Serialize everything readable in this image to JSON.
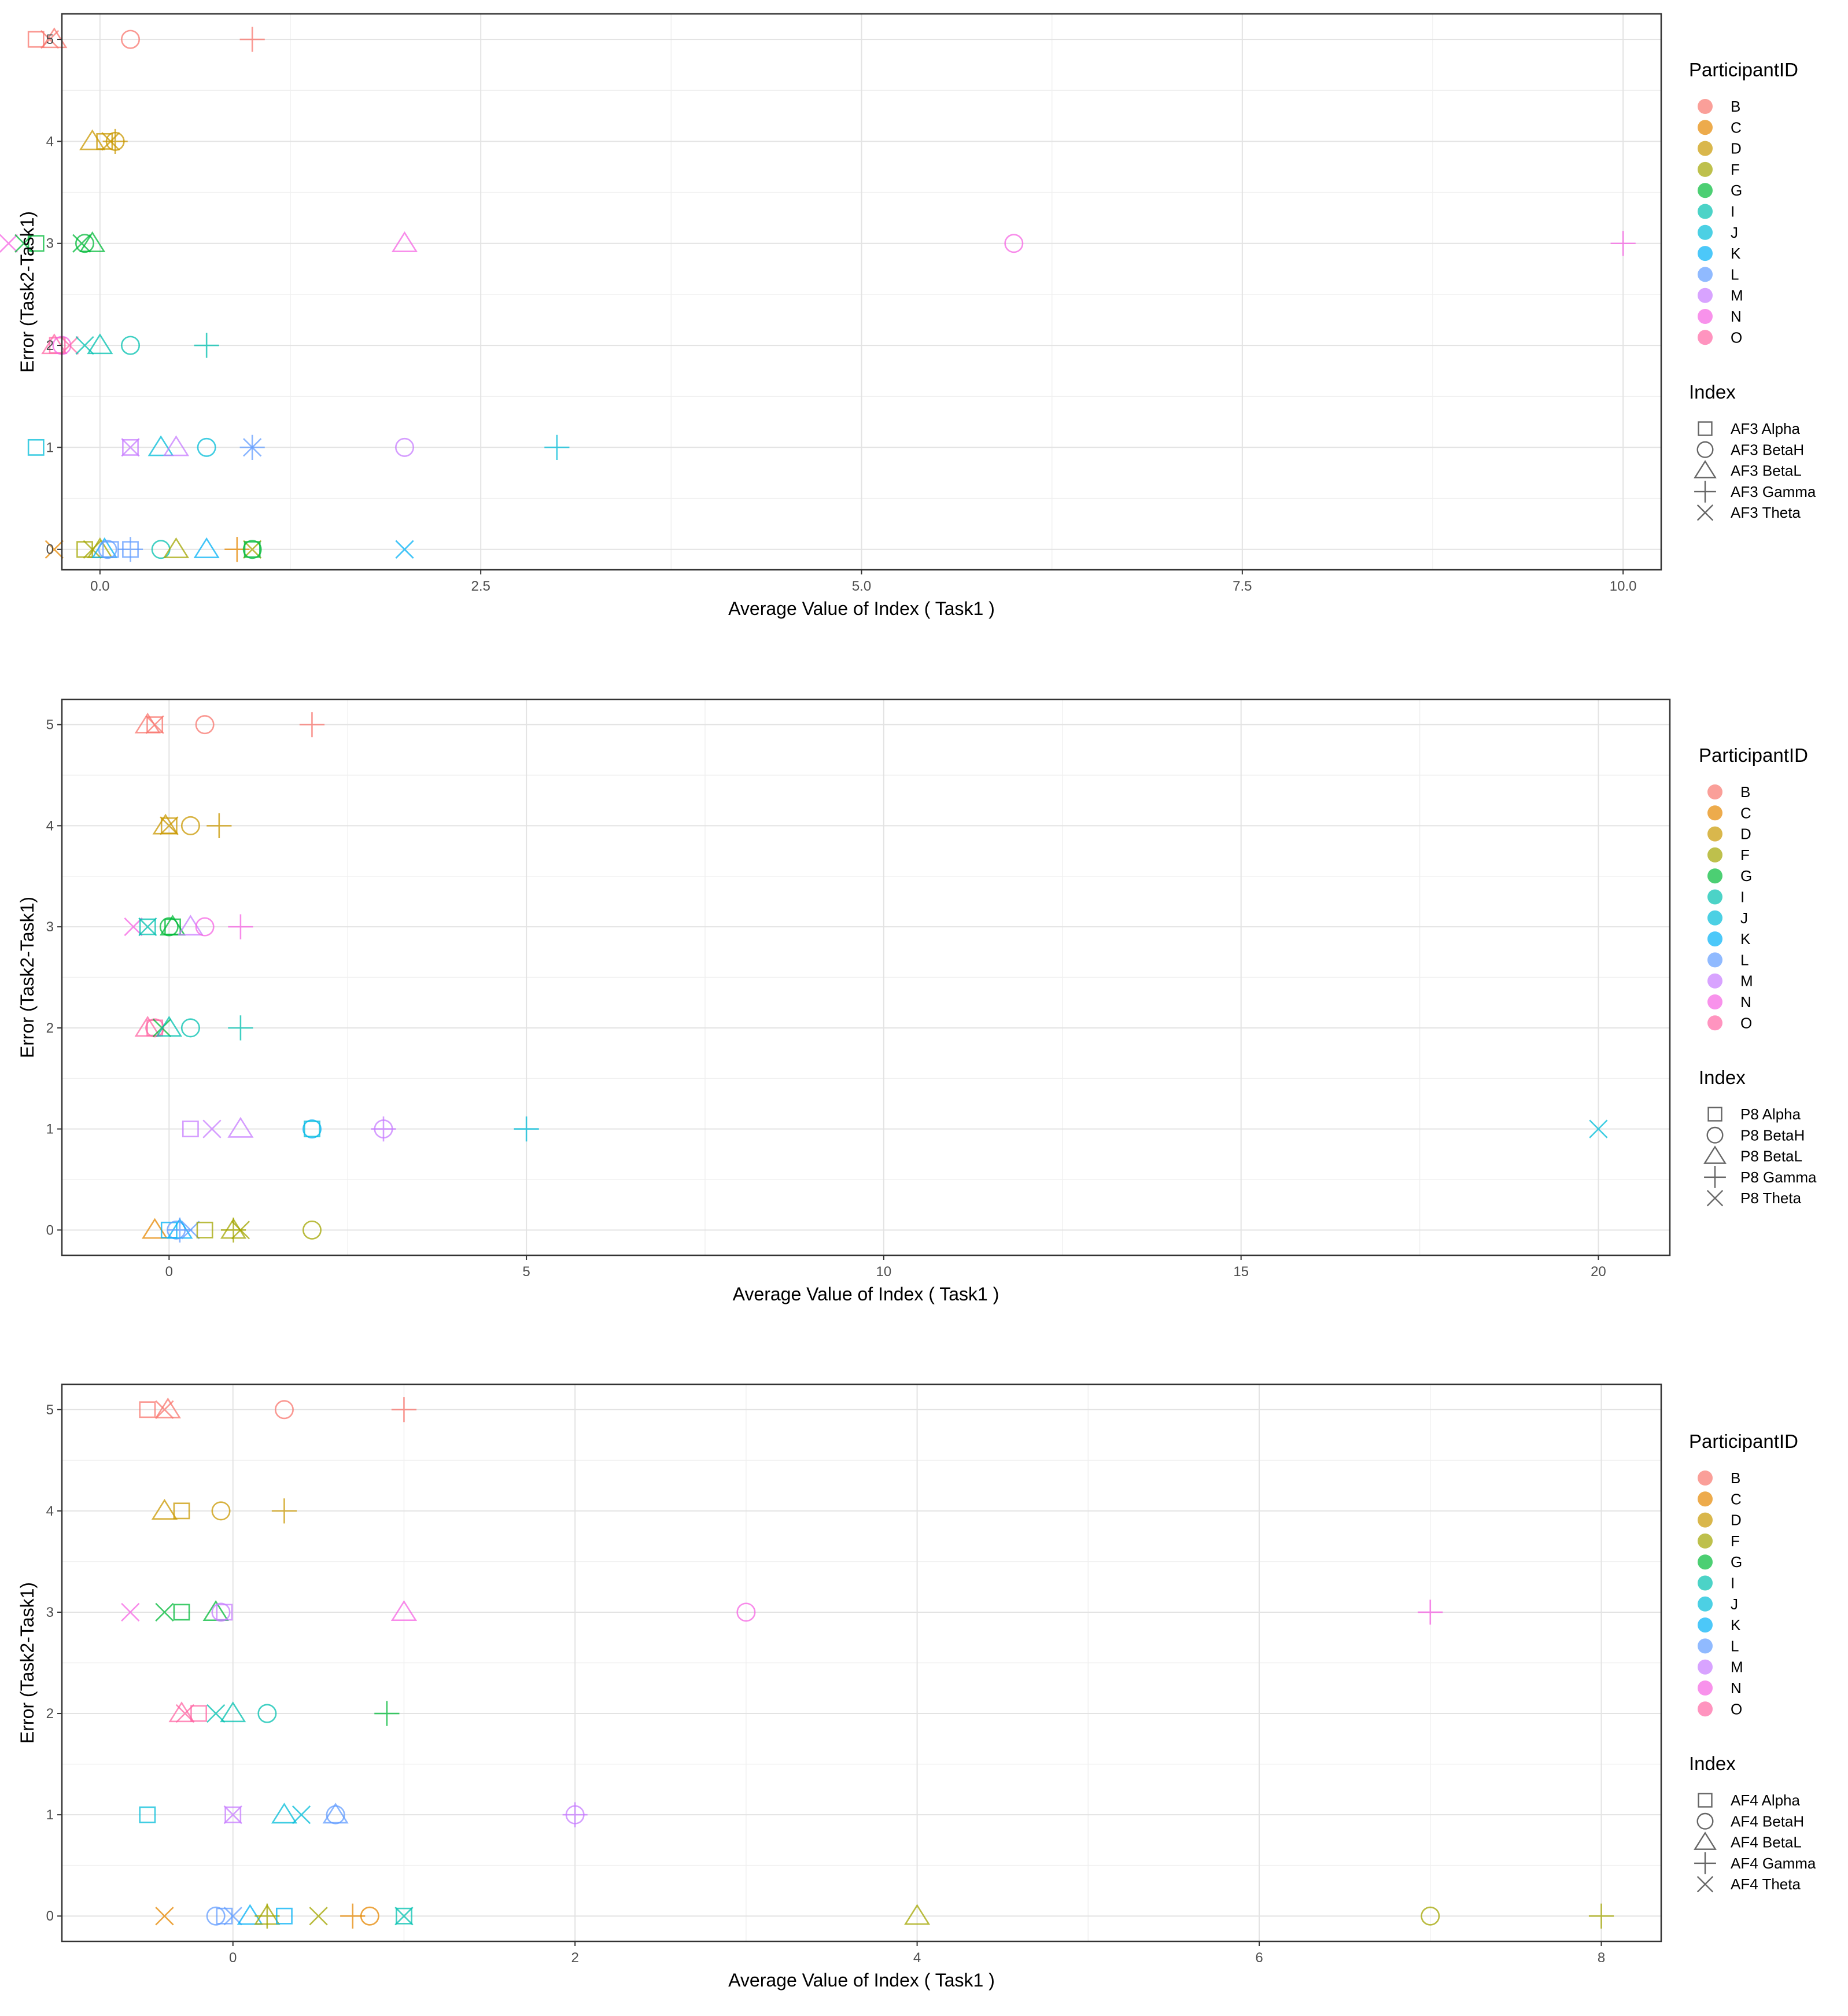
{
  "participant_colors": {
    "B": "#F8766D",
    "C": "#E58700",
    "D": "#C99800",
    "F": "#A3A500",
    "G": "#00BA38",
    "I": "#00C0AF",
    "J": "#00BCD8",
    "K": "#00B0F6",
    "L": "#619CFF",
    "M": "#C77CFF",
    "N": "#F564E3",
    "O": "#FF67A4"
  },
  "chart_data": [
    {
      "type": "scatter",
      "title": "",
      "xlabel": "Average Value of Index ( Task1 )",
      "ylabel": "Error (Task2-Task1)",
      "xlim": [
        -0.25,
        10.25
      ],
      "ylim": [
        -0.2,
        5.25
      ],
      "xticks": [
        0,
        2.5,
        5,
        7.5,
        10
      ],
      "xtick_labels": [
        "0.0",
        "2.5",
        "5.0",
        "7.5",
        "10.0"
      ],
      "yticks": [
        0,
        1,
        2,
        3,
        4,
        5
      ],
      "ytick_labels": [
        "0",
        "1",
        "2",
        "3",
        "4",
        "5"
      ],
      "legend_participant_title": "ParticipantID",
      "participants": [
        "B",
        "C",
        "D",
        "F",
        "G",
        "I",
        "J",
        "K",
        "L",
        "M",
        "N",
        "O"
      ],
      "legend_index_title": "Index",
      "index_labels": [
        "AF3 Alpha",
        "AF3 BetaH",
        "AF3 BetaL",
        "AF3 Gamma",
        "AF3 Theta"
      ],
      "index_shapes": [
        "square",
        "circle",
        "triangle",
        "plus",
        "cross"
      ],
      "points": [
        {
          "x": -0.42,
          "y": 5,
          "p": "B",
          "s": "square"
        },
        {
          "x": -0.33,
          "y": 5,
          "p": "B",
          "s": "cross"
        },
        {
          "x": -0.3,
          "y": 5,
          "p": "B",
          "s": "triangle"
        },
        {
          "x": 0.2,
          "y": 5,
          "p": "B",
          "s": "circle"
        },
        {
          "x": 1.0,
          "y": 5,
          "p": "B",
          "s": "plus"
        },
        {
          "x": -0.05,
          "y": 4,
          "p": "D",
          "s": "triangle"
        },
        {
          "x": 0.03,
          "y": 4,
          "p": "D",
          "s": "square"
        },
        {
          "x": 0.07,
          "y": 4,
          "p": "D",
          "s": "cross"
        },
        {
          "x": 0.1,
          "y": 4,
          "p": "D",
          "s": "circle"
        },
        {
          "x": 0.1,
          "y": 4,
          "p": "D",
          "s": "plus"
        },
        {
          "x": -0.6,
          "y": 3,
          "p": "N",
          "s": "cross"
        },
        {
          "x": -0.5,
          "y": 3,
          "p": "G",
          "s": "cross"
        },
        {
          "x": -0.42,
          "y": 3,
          "p": "G",
          "s": "square"
        },
        {
          "x": -0.12,
          "y": 3,
          "p": "G",
          "s": "cross"
        },
        {
          "x": -0.1,
          "y": 3,
          "p": "G",
          "s": "circle"
        },
        {
          "x": -0.05,
          "y": 3,
          "p": "G",
          "s": "triangle"
        },
        {
          "x": 2.0,
          "y": 3,
          "p": "N",
          "s": "triangle"
        },
        {
          "x": 6.0,
          "y": 3,
          "p": "N",
          "s": "circle"
        },
        {
          "x": 10.0,
          "y": 3,
          "p": "N",
          "s": "plus"
        },
        {
          "x": -0.3,
          "y": 2,
          "p": "O",
          "s": "triangle"
        },
        {
          "x": -0.28,
          "y": 2,
          "p": "O",
          "s": "square"
        },
        {
          "x": -0.25,
          "y": 2,
          "p": "N",
          "s": "circle"
        },
        {
          "x": -0.2,
          "y": 2,
          "p": "O",
          "s": "cross"
        },
        {
          "x": -0.1,
          "y": 2,
          "p": "I",
          "s": "cross"
        },
        {
          "x": 0.0,
          "y": 2,
          "p": "I",
          "s": "triangle"
        },
        {
          "x": 0.2,
          "y": 2,
          "p": "I",
          "s": "circle"
        },
        {
          "x": 0.7,
          "y": 2,
          "p": "I",
          "s": "plus"
        },
        {
          "x": -0.42,
          "y": 1,
          "p": "J",
          "s": "square"
        },
        {
          "x": 0.2,
          "y": 1,
          "p": "M",
          "s": "square"
        },
        {
          "x": 0.2,
          "y": 1,
          "p": "M",
          "s": "cross"
        },
        {
          "x": 0.4,
          "y": 1,
          "p": "J",
          "s": "triangle"
        },
        {
          "x": 0.5,
          "y": 1,
          "p": "M",
          "s": "triangle"
        },
        {
          "x": 0.7,
          "y": 1,
          "p": "J",
          "s": "circle"
        },
        {
          "x": 1.0,
          "y": 1,
          "p": "L",
          "s": "plus"
        },
        {
          "x": 1.0,
          "y": 1,
          "p": "L",
          "s": "cross"
        },
        {
          "x": 2.0,
          "y": 1,
          "p": "M",
          "s": "circle"
        },
        {
          "x": 3.0,
          "y": 1,
          "p": "J",
          "s": "plus"
        },
        {
          "x": -0.3,
          "y": 0,
          "p": "C",
          "s": "cross"
        },
        {
          "x": -0.1,
          "y": 0,
          "p": "F",
          "s": "square"
        },
        {
          "x": -0.05,
          "y": 0,
          "p": "F",
          "s": "cross"
        },
        {
          "x": 0.0,
          "y": 0,
          "p": "F",
          "s": "triangle"
        },
        {
          "x": 0.03,
          "y": 0,
          "p": "K",
          "s": "triangle"
        },
        {
          "x": 0.05,
          "y": 0,
          "p": "L",
          "s": "circle"
        },
        {
          "x": 0.07,
          "y": 0,
          "p": "L",
          "s": "square"
        },
        {
          "x": 0.2,
          "y": 0,
          "p": "L",
          "s": "plus"
        },
        {
          "x": 0.2,
          "y": 0,
          "p": "L",
          "s": "square"
        },
        {
          "x": 0.4,
          "y": 0,
          "p": "I",
          "s": "circle"
        },
        {
          "x": 0.5,
          "y": 0,
          "p": "F",
          "s": "triangle"
        },
        {
          "x": 0.7,
          "y": 0,
          "p": "K",
          "s": "triangle"
        },
        {
          "x": 0.9,
          "y": 0,
          "p": "C",
          "s": "plus"
        },
        {
          "x": 1.0,
          "y": 0,
          "p": "F",
          "s": "cross"
        },
        {
          "x": 1.0,
          "y": 0,
          "p": "G",
          "s": "circle"
        },
        {
          "x": 1.0,
          "y": 0,
          "p": "G",
          "s": "square"
        },
        {
          "x": 2.0,
          "y": 0,
          "p": "K",
          "s": "cross"
        }
      ]
    },
    {
      "type": "scatter",
      "title": "",
      "xlabel": "Average Value of Index ( Task1 )",
      "ylabel": "Error (Task2-Task1)",
      "xlim": [
        -1.5,
        21.0
      ],
      "ylim": [
        -0.25,
        5.25
      ],
      "xticks": [
        0,
        5,
        10,
        15,
        20
      ],
      "xtick_labels": [
        "0",
        "5",
        "10",
        "15",
        "20"
      ],
      "yticks": [
        0,
        1,
        2,
        3,
        4,
        5
      ],
      "ytick_labels": [
        "0",
        "1",
        "2",
        "3",
        "4",
        "5"
      ],
      "legend_participant_title": "ParticipantID",
      "participants": [
        "B",
        "C",
        "D",
        "F",
        "G",
        "I",
        "J",
        "K",
        "L",
        "M",
        "N",
        "O"
      ],
      "legend_index_title": "Index",
      "index_labels": [
        "P8 Alpha",
        "P8 BetaH",
        "P8 BetaL",
        "P8 Gamma",
        "P8 Theta"
      ],
      "index_shapes": [
        "square",
        "circle",
        "triangle",
        "plus",
        "cross"
      ],
      "points": [
        {
          "x": -0.3,
          "y": 5,
          "p": "B",
          "s": "triangle"
        },
        {
          "x": -0.2,
          "y": 5,
          "p": "B",
          "s": "square"
        },
        {
          "x": -0.2,
          "y": 5,
          "p": "B",
          "s": "cross"
        },
        {
          "x": 0.5,
          "y": 5,
          "p": "B",
          "s": "circle"
        },
        {
          "x": 2.0,
          "y": 5,
          "p": "B",
          "s": "plus"
        },
        {
          "x": -0.05,
          "y": 4,
          "p": "D",
          "s": "triangle"
        },
        {
          "x": 0.0,
          "y": 4,
          "p": "D",
          "s": "square"
        },
        {
          "x": 0.0,
          "y": 4,
          "p": "D",
          "s": "cross"
        },
        {
          "x": 0.3,
          "y": 4,
          "p": "D",
          "s": "circle"
        },
        {
          "x": 0.7,
          "y": 4,
          "p": "D",
          "s": "plus"
        },
        {
          "x": -0.5,
          "y": 3,
          "p": "N",
          "s": "cross"
        },
        {
          "x": -0.3,
          "y": 3,
          "p": "I",
          "s": "square"
        },
        {
          "x": -0.3,
          "y": 3,
          "p": "I",
          "s": "cross"
        },
        {
          "x": 0.0,
          "y": 3,
          "p": "G",
          "s": "circle"
        },
        {
          "x": 0.05,
          "y": 3,
          "p": "G",
          "s": "square"
        },
        {
          "x": 0.05,
          "y": 3,
          "p": "G",
          "s": "triangle"
        },
        {
          "x": 0.3,
          "y": 3,
          "p": "M",
          "s": "triangle"
        },
        {
          "x": 0.5,
          "y": 3,
          "p": "N",
          "s": "circle"
        },
        {
          "x": 1.0,
          "y": 3,
          "p": "N",
          "s": "plus"
        },
        {
          "x": -0.3,
          "y": 2,
          "p": "O",
          "s": "triangle"
        },
        {
          "x": -0.2,
          "y": 2,
          "p": "O",
          "s": "square"
        },
        {
          "x": -0.2,
          "y": 2,
          "p": "O",
          "s": "circle"
        },
        {
          "x": -0.1,
          "y": 2,
          "p": "G",
          "s": "cross"
        },
        {
          "x": 0.0,
          "y": 2,
          "p": "I",
          "s": "triangle"
        },
        {
          "x": 0.3,
          "y": 2,
          "p": "I",
          "s": "circle"
        },
        {
          "x": 1.0,
          "y": 2,
          "p": "I",
          "s": "plus"
        },
        {
          "x": 0.3,
          "y": 1,
          "p": "M",
          "s": "square"
        },
        {
          "x": 0.6,
          "y": 1,
          "p": "M",
          "s": "cross"
        },
        {
          "x": 1.0,
          "y": 1,
          "p": "M",
          "s": "triangle"
        },
        {
          "x": 2.0,
          "y": 1,
          "p": "K",
          "s": "circle"
        },
        {
          "x": 2.0,
          "y": 1,
          "p": "J",
          "s": "square"
        },
        {
          "x": 3.0,
          "y": 1,
          "p": "M",
          "s": "circle"
        },
        {
          "x": 3.0,
          "y": 1,
          "p": "M",
          "s": "plus"
        },
        {
          "x": 5.0,
          "y": 1,
          "p": "J",
          "s": "plus"
        },
        {
          "x": 20.0,
          "y": 1,
          "p": "J",
          "s": "cross"
        },
        {
          "x": -0.2,
          "y": 0,
          "p": "C",
          "s": "triangle"
        },
        {
          "x": 0.0,
          "y": 0,
          "p": "K",
          "s": "square"
        },
        {
          "x": 0.1,
          "y": 0,
          "p": "L",
          "s": "circle"
        },
        {
          "x": 0.15,
          "y": 0,
          "p": "K",
          "s": "triangle"
        },
        {
          "x": 0.15,
          "y": 0,
          "p": "L",
          "s": "plus"
        },
        {
          "x": 0.3,
          "y": 0,
          "p": "L",
          "s": "cross"
        },
        {
          "x": 0.5,
          "y": 0,
          "p": "F",
          "s": "square"
        },
        {
          "x": 0.9,
          "y": 0,
          "p": "F",
          "s": "plus"
        },
        {
          "x": 0.9,
          "y": 0,
          "p": "F",
          "s": "triangle"
        },
        {
          "x": 1.0,
          "y": 0,
          "p": "F",
          "s": "cross"
        },
        {
          "x": 2.0,
          "y": 0,
          "p": "F",
          "s": "circle"
        }
      ]
    },
    {
      "type": "scatter",
      "title": "",
      "xlabel": "Average Value of Index ( Task1 )",
      "ylabel": "Error (Task2-Task1)",
      "xlim": [
        -1.0,
        8.35
      ],
      "ylim": [
        -0.25,
        5.25
      ],
      "xticks": [
        0,
        2,
        4,
        6,
        8
      ],
      "xtick_labels": [
        "0",
        "2",
        "4",
        "6",
        "8"
      ],
      "yticks": [
        0,
        1,
        2,
        3,
        4,
        5
      ],
      "ytick_labels": [
        "0",
        "1",
        "2",
        "3",
        "4",
        "5"
      ],
      "legend_participant_title": "ParticipantID",
      "participants": [
        "B",
        "C",
        "D",
        "F",
        "G",
        "I",
        "J",
        "K",
        "L",
        "M",
        "N",
        "O"
      ],
      "legend_index_title": "Index",
      "index_labels": [
        "AF4 Alpha",
        "AF4 BetaH",
        "AF4 BetaL",
        "AF4 Gamma",
        "AF4 Theta"
      ],
      "index_shapes": [
        "square",
        "circle",
        "triangle",
        "plus",
        "cross"
      ],
      "points": [
        {
          "x": -0.5,
          "y": 5,
          "p": "B",
          "s": "square"
        },
        {
          "x": -0.4,
          "y": 5,
          "p": "B",
          "s": "cross"
        },
        {
          "x": -0.38,
          "y": 5,
          "p": "B",
          "s": "triangle"
        },
        {
          "x": 0.3,
          "y": 5,
          "p": "B",
          "s": "circle"
        },
        {
          "x": 1.0,
          "y": 5,
          "p": "B",
          "s": "plus"
        },
        {
          "x": -0.4,
          "y": 4,
          "p": "D",
          "s": "triangle"
        },
        {
          "x": -0.3,
          "y": 4,
          "p": "D",
          "s": "square"
        },
        {
          "x": -0.07,
          "y": 4,
          "p": "D",
          "s": "circle"
        },
        {
          "x": 0.3,
          "y": 4,
          "p": "D",
          "s": "plus"
        },
        {
          "x": -0.6,
          "y": 3,
          "p": "N",
          "s": "cross"
        },
        {
          "x": -0.4,
          "y": 3,
          "p": "G",
          "s": "cross"
        },
        {
          "x": -0.3,
          "y": 3,
          "p": "G",
          "s": "square"
        },
        {
          "x": -0.1,
          "y": 3,
          "p": "G",
          "s": "triangle"
        },
        {
          "x": -0.07,
          "y": 3,
          "p": "M",
          "s": "circle"
        },
        {
          "x": -0.05,
          "y": 3,
          "p": "M",
          "s": "square"
        },
        {
          "x": 1.0,
          "y": 3,
          "p": "N",
          "s": "triangle"
        },
        {
          "x": 3.0,
          "y": 3,
          "p": "N",
          "s": "circle"
        },
        {
          "x": 7.0,
          "y": 3,
          "p": "N",
          "s": "plus"
        },
        {
          "x": -0.3,
          "y": 2,
          "p": "O",
          "s": "triangle"
        },
        {
          "x": -0.28,
          "y": 2,
          "p": "O",
          "s": "cross"
        },
        {
          "x": -0.2,
          "y": 2,
          "p": "O",
          "s": "square"
        },
        {
          "x": -0.1,
          "y": 2,
          "p": "I",
          "s": "cross"
        },
        {
          "x": 0.0,
          "y": 2,
          "p": "I",
          "s": "triangle"
        },
        {
          "x": 0.2,
          "y": 2,
          "p": "I",
          "s": "circle"
        },
        {
          "x": 0.9,
          "y": 2,
          "p": "G",
          "s": "plus"
        },
        {
          "x": -0.5,
          "y": 1,
          "p": "J",
          "s": "square"
        },
        {
          "x": 0.0,
          "y": 1,
          "p": "M",
          "s": "square"
        },
        {
          "x": 0.0,
          "y": 1,
          "p": "M",
          "s": "cross"
        },
        {
          "x": 0.3,
          "y": 1,
          "p": "J",
          "s": "triangle"
        },
        {
          "x": 0.4,
          "y": 1,
          "p": "J",
          "s": "cross"
        },
        {
          "x": 0.6,
          "y": 1,
          "p": "L",
          "s": "circle"
        },
        {
          "x": 0.6,
          "y": 1,
          "p": "L",
          "s": "triangle"
        },
        {
          "x": 2.0,
          "y": 1,
          "p": "M",
          "s": "circle"
        },
        {
          "x": 2.0,
          "y": 1,
          "p": "M",
          "s": "plus"
        },
        {
          "x": -0.4,
          "y": 0,
          "p": "C",
          "s": "cross"
        },
        {
          "x": -0.1,
          "y": 0,
          "p": "L",
          "s": "circle"
        },
        {
          "x": -0.05,
          "y": 0,
          "p": "L",
          "s": "square"
        },
        {
          "x": 0.0,
          "y": 0,
          "p": "L",
          "s": "cross"
        },
        {
          "x": 0.1,
          "y": 0,
          "p": "K",
          "s": "triangle"
        },
        {
          "x": 0.2,
          "y": 0,
          "p": "F",
          "s": "plus"
        },
        {
          "x": 0.2,
          "y": 0,
          "p": "F",
          "s": "triangle"
        },
        {
          "x": 0.3,
          "y": 0,
          "p": "K",
          "s": "square"
        },
        {
          "x": 0.5,
          "y": 0,
          "p": "F",
          "s": "cross"
        },
        {
          "x": 0.7,
          "y": 0,
          "p": "C",
          "s": "plus"
        },
        {
          "x": 0.8,
          "y": 0,
          "p": "C",
          "s": "circle"
        },
        {
          "x": 1.0,
          "y": 0,
          "p": "I",
          "s": "square"
        },
        {
          "x": 1.0,
          "y": 0,
          "p": "I",
          "s": "cross"
        },
        {
          "x": 4.0,
          "y": 0,
          "p": "F",
          "s": "triangle"
        },
        {
          "x": 7.0,
          "y": 0,
          "p": "F",
          "s": "circle"
        },
        {
          "x": 8.0,
          "y": 0,
          "p": "F",
          "s": "plus"
        }
      ]
    }
  ]
}
